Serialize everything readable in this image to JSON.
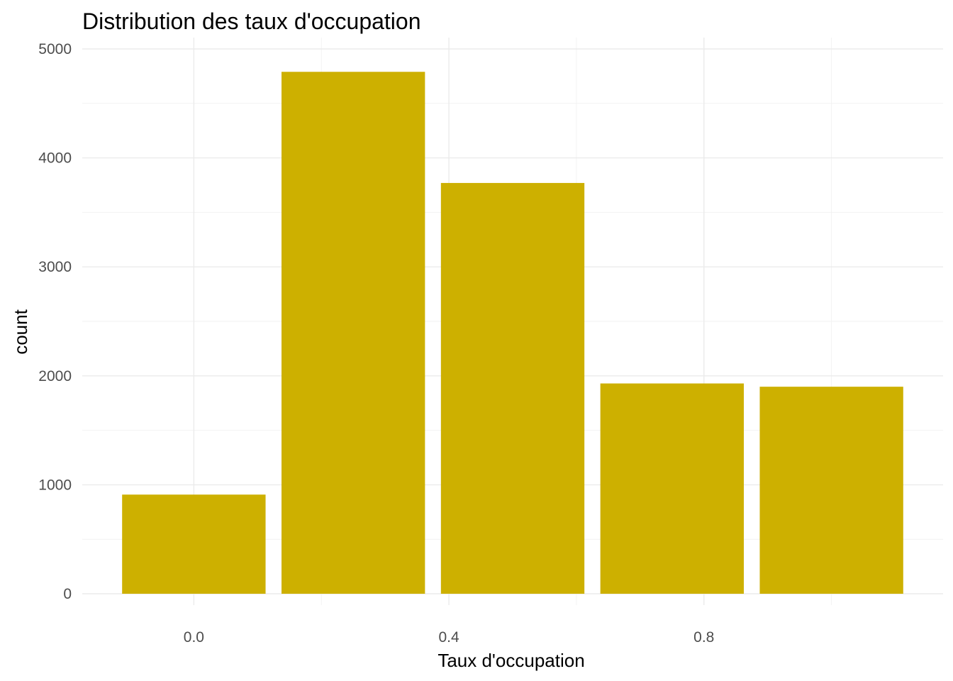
{
  "chart_data": {
    "type": "bar",
    "title": "Distribution des taux d'occupation",
    "xlabel": "Taux d'occupation",
    "ylabel": "count",
    "x": [
      0.0,
      0.25,
      0.5,
      0.75,
      1.0
    ],
    "values": [
      910,
      4790,
      3770,
      1930,
      1900
    ],
    "bar_width": 0.225,
    "xlim": [
      -0.175,
      1.175
    ],
    "ylim": [
      0,
      5000
    ],
    "x_ticks": [
      0.0,
      0.4,
      0.8
    ],
    "x_tick_labels": [
      "0.0",
      "0.4",
      "0.8"
    ],
    "y_ticks": [
      0,
      1000,
      2000,
      3000,
      4000,
      5000
    ],
    "y_tick_labels": [
      "0",
      "1000",
      "2000",
      "3000",
      "4000",
      "5000"
    ],
    "bar_color": "#CDB000",
    "grid": true,
    "legend": "none"
  }
}
